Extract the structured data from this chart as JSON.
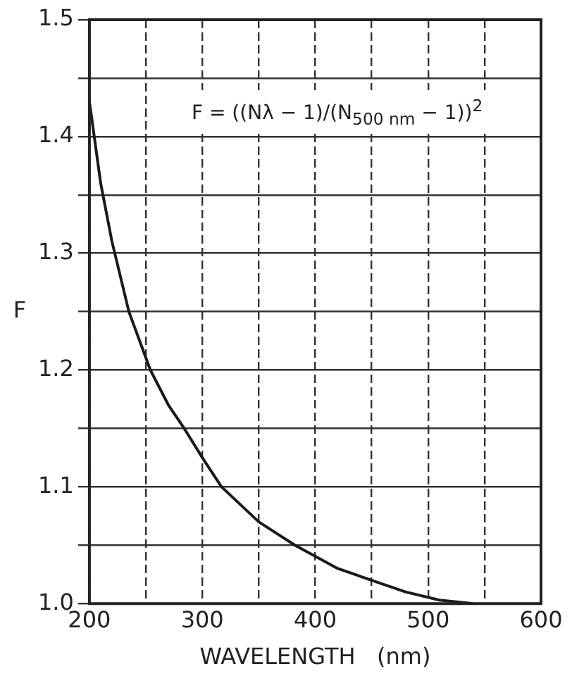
{
  "chart_data": {
    "type": "line",
    "xlabel": "WAVELENGTH   (nm)",
    "ylabel": "F",
    "annotations": [
      "F = ((Nλ − 1)/(N$_{500 nm}$ − 1))$^{2}$"
    ],
    "series": [
      {
        "color": "#1a1a1a",
        "x": [
          200,
          210,
          220,
          235,
          254,
          270,
          284,
          300,
          317,
          350,
          382,
          420,
          450,
          480,
          510,
          540
        ],
        "values": [
          1.43,
          1.36,
          1.31,
          1.25,
          1.2,
          1.17,
          1.15,
          1.125,
          1.1,
          1.07,
          1.05,
          1.03,
          1.02,
          1.01,
          1.003,
          1.0
        ]
      }
    ],
    "xlim": [
      200,
      600
    ],
    "xticks": [
      200,
      {
        "value": 250,
        "label": null
      },
      300,
      {
        "value": 350,
        "label": null
      },
      400,
      {
        "value": 450,
        "label": null
      },
      500,
      {
        "value": 550,
        "label": null
      },
      600
    ],
    "ylim": [
      1.0,
      1.5
    ],
    "yticks": [
      {
        "value": 1.0,
        "label": "1.0"
      },
      {
        "value": 1.05,
        "label": null
      },
      1.1,
      {
        "value": 1.15,
        "label": null
      },
      1.2,
      {
        "value": 1.25,
        "label": null
      },
      1.3,
      {
        "value": 1.35,
        "label": null
      },
      1.4,
      {
        "value": 1.45,
        "label": null
      },
      1.5
    ],
    "grid": true,
    "legend": false,
    "marker": "none",
    "line_style": "solid"
  }
}
